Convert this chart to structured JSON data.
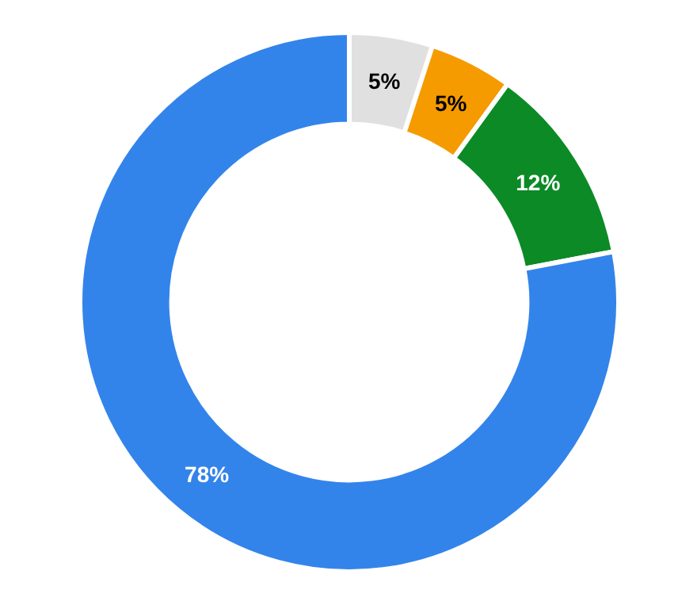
{
  "chart_data": {
    "type": "donut",
    "categories": [
      null,
      null,
      null,
      null
    ],
    "values": [
      5,
      5,
      12,
      78
    ],
    "colors": [
      "#e0e0e0",
      "#f59b00",
      "#0b8a26",
      "#3384ea"
    ],
    "value_labels": [
      "5%",
      "5%",
      "12%",
      "78%"
    ]
  }
}
